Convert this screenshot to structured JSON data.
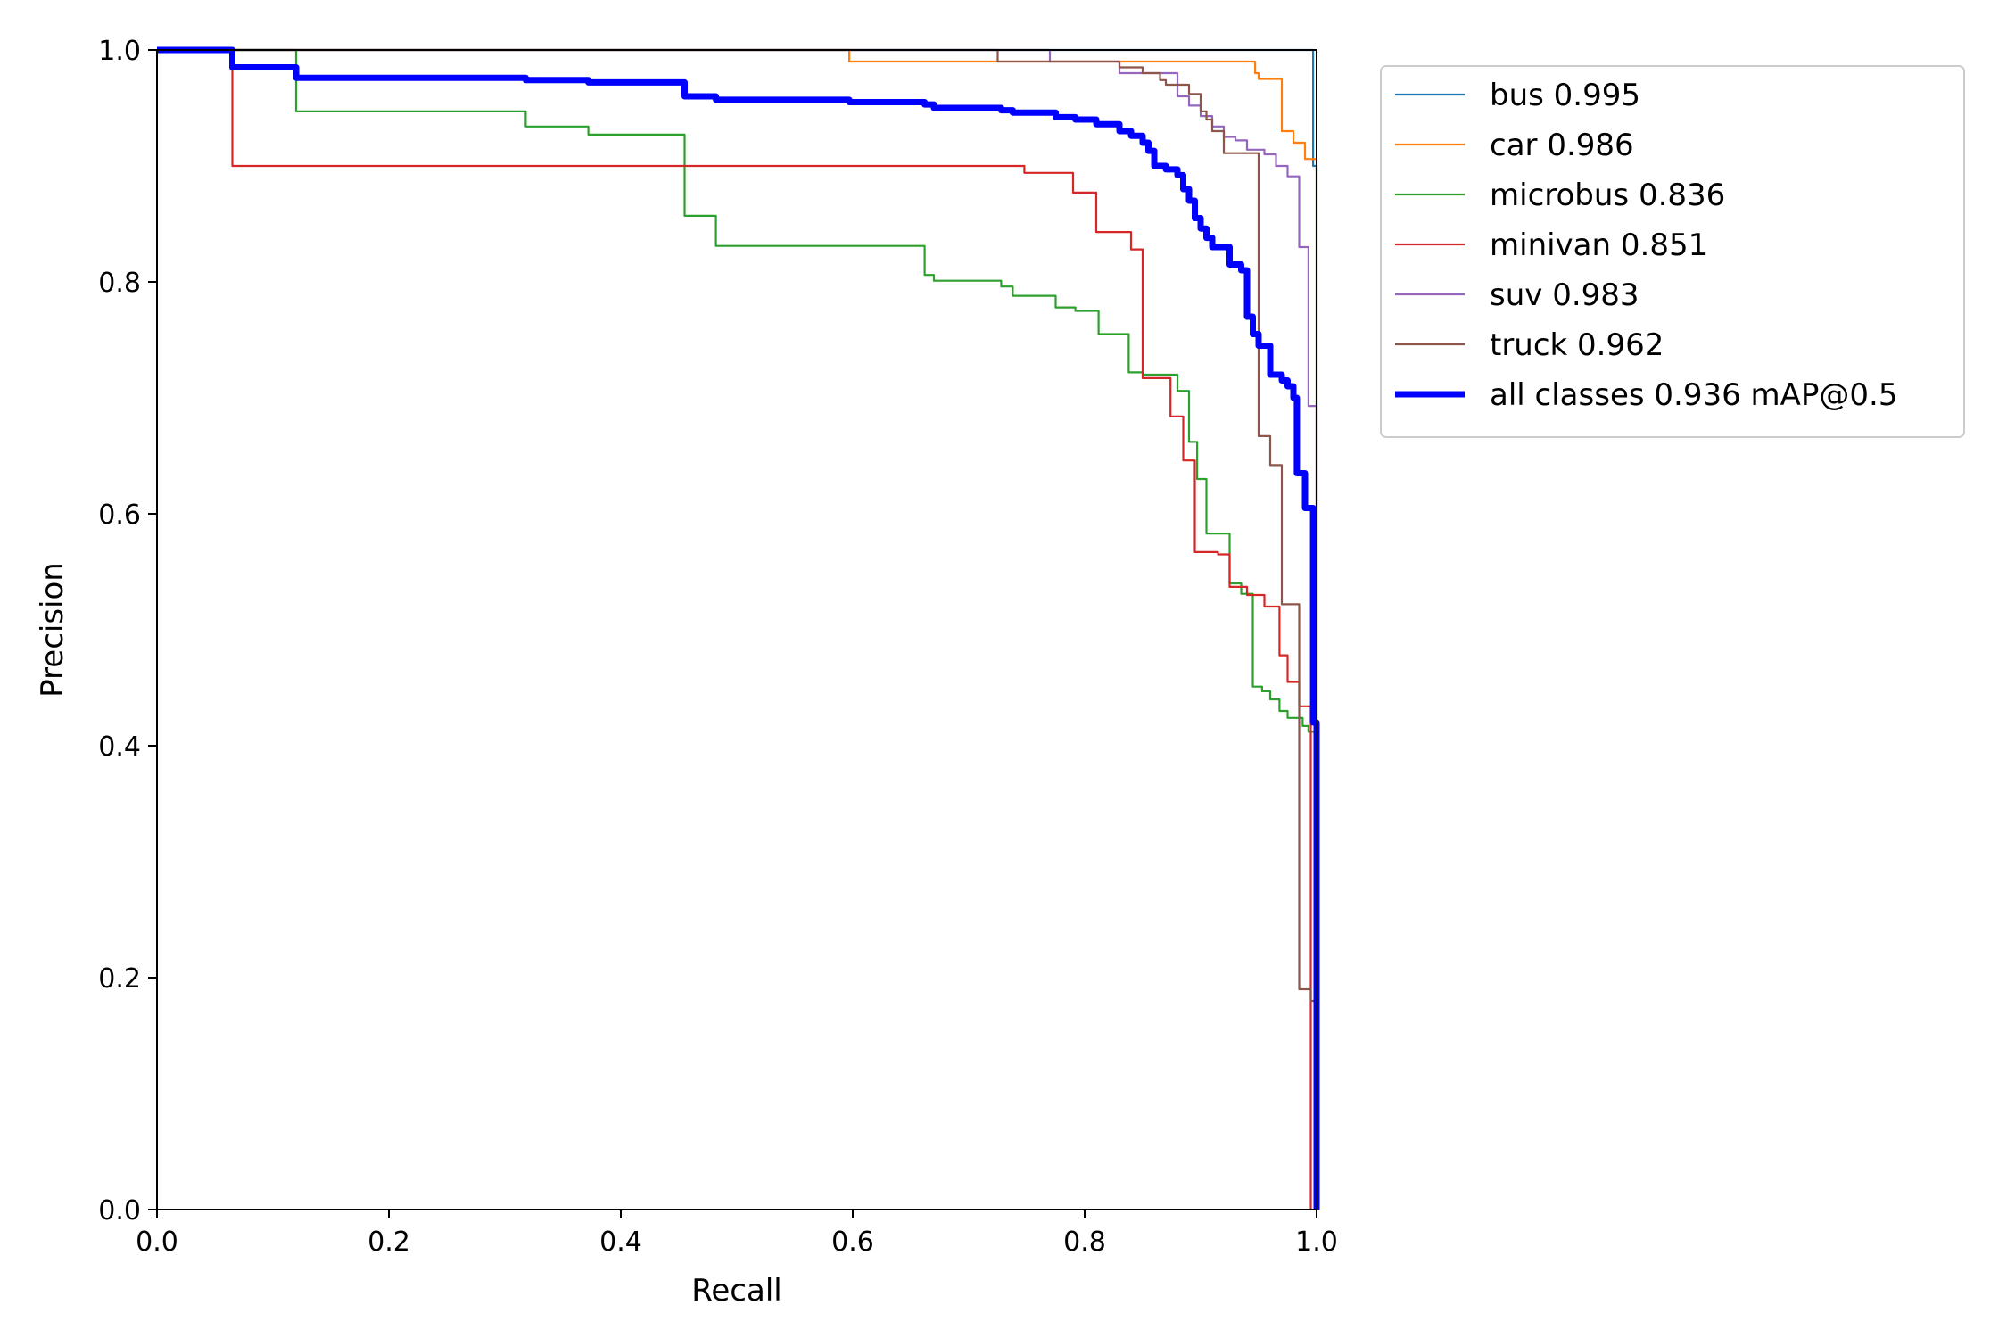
{
  "chart_data": {
    "type": "line",
    "title": "",
    "xlabel": "Recall",
    "ylabel": "Precision",
    "xlim": [
      0,
      1
    ],
    "ylim": [
      0,
      1
    ],
    "xticks": [
      "0.0",
      "0.2",
      "0.4",
      "0.6",
      "0.8",
      "1.0"
    ],
    "yticks": [
      "0.0",
      "0.2",
      "0.4",
      "0.6",
      "0.8",
      "1.0"
    ],
    "grid": false,
    "legend_position": "outside-top-right",
    "series": [
      {
        "name": "bus 0.995",
        "color": "#1f77b4",
        "width": "thin",
        "points": [
          [
            0,
            1
          ],
          [
            0.997,
            1
          ],
          [
            0.997,
            0.9
          ],
          [
            1.0,
            0.9
          ],
          [
            1.0,
            0
          ]
        ]
      },
      {
        "name": "car 0.986",
        "color": "#ff7f0e",
        "width": "thin",
        "points": [
          [
            0,
            1
          ],
          [
            0.597,
            1
          ],
          [
            0.597,
            0.99
          ],
          [
            0.947,
            0.99
          ],
          [
            0.947,
            0.98
          ],
          [
            0.95,
            0.98
          ],
          [
            0.95,
            0.975
          ],
          [
            0.97,
            0.975
          ],
          [
            0.97,
            0.93
          ],
          [
            0.98,
            0.93
          ],
          [
            0.98,
            0.92
          ],
          [
            0.99,
            0.92
          ],
          [
            0.99,
            0.906
          ],
          [
            1.0,
            0.906
          ],
          [
            1.0,
            0.69
          ],
          [
            1.0,
            0
          ]
        ]
      },
      {
        "name": "microbus 0.836",
        "color": "#2ca02c",
        "width": "thin",
        "points": [
          [
            0,
            1
          ],
          [
            0.12,
            1
          ],
          [
            0.12,
            0.947
          ],
          [
            0.318,
            0.947
          ],
          [
            0.318,
            0.934
          ],
          [
            0.372,
            0.934
          ],
          [
            0.372,
            0.927
          ],
          [
            0.455,
            0.927
          ],
          [
            0.455,
            0.857
          ],
          [
            0.482,
            0.857
          ],
          [
            0.482,
            0.831
          ],
          [
            0.662,
            0.831
          ],
          [
            0.662,
            0.806
          ],
          [
            0.67,
            0.806
          ],
          [
            0.67,
            0.801
          ],
          [
            0.728,
            0.801
          ],
          [
            0.728,
            0.796
          ],
          [
            0.738,
            0.796
          ],
          [
            0.738,
            0.788
          ],
          [
            0.775,
            0.788
          ],
          [
            0.775,
            0.778
          ],
          [
            0.792,
            0.778
          ],
          [
            0.792,
            0.775
          ],
          [
            0.812,
            0.775
          ],
          [
            0.812,
            0.755
          ],
          [
            0.838,
            0.755
          ],
          [
            0.838,
            0.722
          ],
          [
            0.85,
            0.722
          ],
          [
            0.85,
            0.72
          ],
          [
            0.88,
            0.72
          ],
          [
            0.88,
            0.706
          ],
          [
            0.89,
            0.706
          ],
          [
            0.89,
            0.662
          ],
          [
            0.897,
            0.662
          ],
          [
            0.897,
            0.63
          ],
          [
            0.905,
            0.63
          ],
          [
            0.905,
            0.583
          ],
          [
            0.925,
            0.583
          ],
          [
            0.925,
            0.54
          ],
          [
            0.935,
            0.54
          ],
          [
            0.935,
            0.531
          ],
          [
            0.945,
            0.531
          ],
          [
            0.945,
            0.451
          ],
          [
            0.953,
            0.451
          ],
          [
            0.953,
            0.447
          ],
          [
            0.96,
            0.447
          ],
          [
            0.96,
            0.44
          ],
          [
            0.968,
            0.44
          ],
          [
            0.968,
            0.43
          ],
          [
            0.975,
            0.43
          ],
          [
            0.975,
            0.424
          ],
          [
            0.988,
            0.424
          ],
          [
            0.988,
            0.417
          ],
          [
            0.993,
            0.417
          ],
          [
            0.993,
            0.412
          ],
          [
            1.0,
            0.412
          ],
          [
            1.0,
            0
          ]
        ]
      },
      {
        "name": "minivan 0.851",
        "color": "#d62728",
        "width": "thin",
        "points": [
          [
            0,
            1
          ],
          [
            0.065,
            1
          ],
          [
            0.065,
            0.9
          ],
          [
            0.748,
            0.9
          ],
          [
            0.748,
            0.894
          ],
          [
            0.79,
            0.894
          ],
          [
            0.79,
            0.877
          ],
          [
            0.81,
            0.877
          ],
          [
            0.81,
            0.843
          ],
          [
            0.84,
            0.843
          ],
          [
            0.84,
            0.828
          ],
          [
            0.85,
            0.828
          ],
          [
            0.85,
            0.717
          ],
          [
            0.874,
            0.717
          ],
          [
            0.874,
            0.684
          ],
          [
            0.885,
            0.684
          ],
          [
            0.885,
            0.646
          ],
          [
            0.895,
            0.646
          ],
          [
            0.895,
            0.567
          ],
          [
            0.915,
            0.567
          ],
          [
            0.915,
            0.565
          ],
          [
            0.925,
            0.565
          ],
          [
            0.925,
            0.537
          ],
          [
            0.94,
            0.537
          ],
          [
            0.94,
            0.53
          ],
          [
            0.955,
            0.53
          ],
          [
            0.955,
            0.52
          ],
          [
            0.968,
            0.52
          ],
          [
            0.968,
            0.478
          ],
          [
            0.975,
            0.478
          ],
          [
            0.975,
            0.455
          ],
          [
            0.985,
            0.455
          ],
          [
            0.985,
            0.434
          ],
          [
            0.995,
            0.434
          ],
          [
            0.995,
            0
          ]
        ]
      },
      {
        "name": "suv 0.983",
        "color": "#9467bd",
        "width": "thin",
        "points": [
          [
            0,
            1
          ],
          [
            0.77,
            1
          ],
          [
            0.77,
            0.99
          ],
          [
            0.83,
            0.99
          ],
          [
            0.83,
            0.986
          ],
          [
            0.83,
            0.98
          ],
          [
            0.88,
            0.98
          ],
          [
            0.88,
            0.96
          ],
          [
            0.89,
            0.96
          ],
          [
            0.89,
            0.952
          ],
          [
            0.9,
            0.952
          ],
          [
            0.9,
            0.943
          ],
          [
            0.91,
            0.943
          ],
          [
            0.91,
            0.934
          ],
          [
            0.92,
            0.934
          ],
          [
            0.92,
            0.925
          ],
          [
            0.93,
            0.925
          ],
          [
            0.93,
            0.922
          ],
          [
            0.94,
            0.922
          ],
          [
            0.94,
            0.914
          ],
          [
            0.955,
            0.914
          ],
          [
            0.955,
            0.91
          ],
          [
            0.965,
            0.91
          ],
          [
            0.965,
            0.9
          ],
          [
            0.975,
            0.9
          ],
          [
            0.975,
            0.891
          ],
          [
            0.985,
            0.891
          ],
          [
            0.985,
            0.83
          ],
          [
            0.993,
            0.83
          ],
          [
            0.993,
            0.693
          ],
          [
            1.0,
            0.693
          ],
          [
            1.0,
            0
          ]
        ]
      },
      {
        "name": "truck 0.962",
        "color": "#8c564b",
        "width": "thin",
        "points": [
          [
            0,
            1
          ],
          [
            0.725,
            1
          ],
          [
            0.725,
            0.99
          ],
          [
            0.83,
            0.99
          ],
          [
            0.83,
            0.985
          ],
          [
            0.85,
            0.985
          ],
          [
            0.85,
            0.98
          ],
          [
            0.865,
            0.98
          ],
          [
            0.865,
            0.974
          ],
          [
            0.87,
            0.974
          ],
          [
            0.87,
            0.97
          ],
          [
            0.89,
            0.97
          ],
          [
            0.89,
            0.962
          ],
          [
            0.9,
            0.962
          ],
          [
            0.9,
            0.947
          ],
          [
            0.905,
            0.947
          ],
          [
            0.905,
            0.94
          ],
          [
            0.91,
            0.94
          ],
          [
            0.91,
            0.93
          ],
          [
            0.92,
            0.93
          ],
          [
            0.92,
            0.911
          ],
          [
            0.935,
            0.911
          ],
          [
            0.935,
            0.911
          ],
          [
            0.95,
            0.911
          ],
          [
            0.95,
            0.667
          ],
          [
            0.96,
            0.667
          ],
          [
            0.96,
            0.642
          ],
          [
            0.97,
            0.642
          ],
          [
            0.97,
            0.522
          ],
          [
            0.985,
            0.522
          ],
          [
            0.985,
            0.19
          ],
          [
            0.995,
            0.19
          ],
          [
            0.995,
            0.18
          ],
          [
            1.0,
            0.18
          ],
          [
            1.0,
            0
          ]
        ]
      },
      {
        "name": "all classes 0.936 mAP@0.5",
        "color": "#0000ff",
        "width": "thick",
        "points": [
          [
            0,
            1
          ],
          [
            0.065,
            1
          ],
          [
            0.065,
            0.985
          ],
          [
            0.12,
            0.985
          ],
          [
            0.12,
            0.976
          ],
          [
            0.318,
            0.976
          ],
          [
            0.318,
            0.974
          ],
          [
            0.372,
            0.974
          ],
          [
            0.372,
            0.972
          ],
          [
            0.455,
            0.972
          ],
          [
            0.455,
            0.96
          ],
          [
            0.482,
            0.96
          ],
          [
            0.482,
            0.957
          ],
          [
            0.597,
            0.957
          ],
          [
            0.597,
            0.955
          ],
          [
            0.662,
            0.955
          ],
          [
            0.662,
            0.953
          ],
          [
            0.67,
            0.953
          ],
          [
            0.67,
            0.95
          ],
          [
            0.728,
            0.95
          ],
          [
            0.728,
            0.948
          ],
          [
            0.738,
            0.948
          ],
          [
            0.738,
            0.946
          ],
          [
            0.775,
            0.946
          ],
          [
            0.775,
            0.942
          ],
          [
            0.792,
            0.942
          ],
          [
            0.792,
            0.94
          ],
          [
            0.81,
            0.94
          ],
          [
            0.81,
            0.936
          ],
          [
            0.83,
            0.936
          ],
          [
            0.83,
            0.93
          ],
          [
            0.84,
            0.93
          ],
          [
            0.84,
            0.926
          ],
          [
            0.85,
            0.926
          ],
          [
            0.85,
            0.92
          ],
          [
            0.855,
            0.92
          ],
          [
            0.855,
            0.913
          ],
          [
            0.86,
            0.913
          ],
          [
            0.86,
            0.9
          ],
          [
            0.87,
            0.9
          ],
          [
            0.87,
            0.897
          ],
          [
            0.88,
            0.897
          ],
          [
            0.88,
            0.892
          ],
          [
            0.885,
            0.892
          ],
          [
            0.885,
            0.88
          ],
          [
            0.89,
            0.88
          ],
          [
            0.89,
            0.87
          ],
          [
            0.895,
            0.87
          ],
          [
            0.895,
            0.855
          ],
          [
            0.9,
            0.855
          ],
          [
            0.9,
            0.846
          ],
          [
            0.905,
            0.846
          ],
          [
            0.905,
            0.838
          ],
          [
            0.91,
            0.838
          ],
          [
            0.91,
            0.83
          ],
          [
            0.925,
            0.83
          ],
          [
            0.925,
            0.815
          ],
          [
            0.935,
            0.815
          ],
          [
            0.935,
            0.81
          ],
          [
            0.94,
            0.81
          ],
          [
            0.94,
            0.77
          ],
          [
            0.945,
            0.77
          ],
          [
            0.945,
            0.755
          ],
          [
            0.95,
            0.755
          ],
          [
            0.95,
            0.745
          ],
          [
            0.96,
            0.745
          ],
          [
            0.96,
            0.72
          ],
          [
            0.97,
            0.72
          ],
          [
            0.97,
            0.715
          ],
          [
            0.975,
            0.715
          ],
          [
            0.975,
            0.71
          ],
          [
            0.98,
            0.71
          ],
          [
            0.98,
            0.7
          ],
          [
            0.983,
            0.7
          ],
          [
            0.983,
            0.635
          ],
          [
            0.99,
            0.635
          ],
          [
            0.99,
            0.605
          ],
          [
            0.997,
            0.605
          ],
          [
            0.997,
            0.42
          ],
          [
            1.0,
            0.42
          ],
          [
            1.0,
            0
          ]
        ]
      }
    ]
  }
}
